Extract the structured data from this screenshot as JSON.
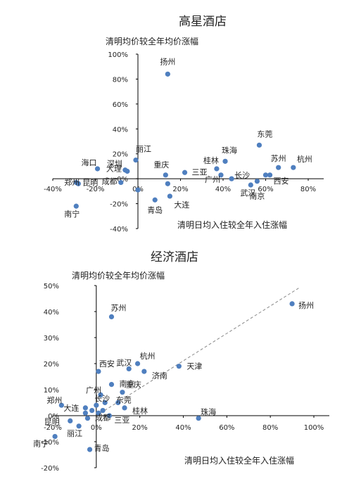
{
  "chart_data": [
    {
      "type": "scatter",
      "title": "高星酒店",
      "ylabel": "清明均价较全年均价涨幅",
      "xlabel": "清明日均入住较全年入住涨幅",
      "xlim": [
        -40,
        80
      ],
      "ylim": [
        -40,
        100
      ],
      "xticks": [
        "-40%",
        "-20%",
        "0%",
        "20%",
        "40%",
        "60%",
        "80%"
      ],
      "yticks": [
        "-40%",
        "-20%",
        "0%",
        "20%",
        "40%",
        "60%",
        "80%",
        "100%"
      ],
      "points": [
        {
          "label": "扬州",
          "x": 14,
          "y": 84
        },
        {
          "label": "东莞",
          "x": 57,
          "y": 27
        },
        {
          "label": "珠海",
          "x": 41,
          "y": 14
        },
        {
          "label": "桂林",
          "x": 37,
          "y": 8
        },
        {
          "label": "苏州",
          "x": 66,
          "y": 9
        },
        {
          "label": "杭州",
          "x": 73,
          "y": 9
        },
        {
          "label": "丽江",
          "x": -1,
          "y": 15
        },
        {
          "label": "深圳",
          "x": -5,
          "y": 6
        },
        {
          "label": "大理",
          "x": -6,
          "y": 7
        },
        {
          "label": "成都",
          "x": -8,
          "y": -3
        },
        {
          "label": "海口",
          "x": -19,
          "y": 8
        },
        {
          "label": "昆明",
          "x": -29,
          "y": -3
        },
        {
          "label": "郑州",
          "x": -28,
          "y": -4
        },
        {
          "label": "南宁",
          "x": -29,
          "y": -22
        },
        {
          "label": "重庆",
          "x": 13,
          "y": 3
        },
        {
          "label": "三亚",
          "x": 22,
          "y": 5
        },
        {
          "label": "广州",
          "x": 39,
          "y": 3
        },
        {
          "label": "长沙",
          "x": 44,
          "y": 0
        },
        {
          "label": "武汉",
          "x": 53,
          "y": -5
        },
        {
          "label": "南京",
          "x": 56,
          "y": -2
        },
        {
          "label": "西安",
          "x": 60,
          "y": 3
        },
        {
          "label": "青岛",
          "x": 8,
          "y": -17
        },
        {
          "label": "大连",
          "x": 15,
          "y": -14
        }
      ],
      "extra_points": [
        {
          "x": 0,
          "y": -9
        },
        {
          "x": 14,
          "y": -4
        },
        {
          "x": 62,
          "y": 3
        }
      ]
    },
    {
      "type": "scatter",
      "title": "经济酒店",
      "ylabel": "清明均价较全年均价涨幅",
      "xlabel": "清明日均入住较全年入住涨幅",
      "xlim": [
        -20,
        100
      ],
      "ylim": [
        -20,
        50
      ],
      "xticks": [
        "-20%",
        "0%",
        "20%",
        "40%",
        "60%",
        "80%",
        "100%"
      ],
      "yticks": [
        "-20%",
        "-10%",
        "0%",
        "10%",
        "20%",
        "30%",
        "40%",
        "50%"
      ],
      "trendline": [
        [
          0,
          0
        ],
        [
          93,
          49
        ]
      ],
      "points": [
        {
          "label": "扬州",
          "x": 90,
          "y": 43
        },
        {
          "label": "苏州",
          "x": 7,
          "y": 38
        },
        {
          "label": "天津",
          "x": 38,
          "y": 19
        },
        {
          "label": "杭州",
          "x": 19,
          "y": 20
        },
        {
          "label": "武汉",
          "x": 15,
          "y": 18
        },
        {
          "label": "济南",
          "x": 22,
          "y": 17
        },
        {
          "label": "西安",
          "x": 1,
          "y": 17
        },
        {
          "label": "南京",
          "x": 7,
          "y": 12
        },
        {
          "label": "广州",
          "x": 2,
          "y": 8
        },
        {
          "label": "重庆",
          "x": 12,
          "y": 9
        },
        {
          "label": "长沙",
          "x": 4,
          "y": 5
        },
        {
          "label": "东莞",
          "x": 10,
          "y": 5
        },
        {
          "label": "桂林",
          "x": 13,
          "y": 3
        },
        {
          "label": "珠海",
          "x": 47,
          "y": -1
        },
        {
          "label": "三亚",
          "x": 6,
          "y": 0
        },
        {
          "label": "成都",
          "x": 3,
          "y": 2
        },
        {
          "label": "郑州",
          "x": -16,
          "y": 4
        },
        {
          "label": "大连",
          "x": -5,
          "y": 3
        },
        {
          "label": "昆明",
          "x": -12,
          "y": -2
        },
        {
          "label": "丽江",
          "x": -8,
          "y": -4
        },
        {
          "label": "南宁",
          "x": -19,
          "y": -8
        },
        {
          "label": "青岛",
          "x": -3,
          "y": -13
        }
      ],
      "extra_points": [
        {
          "x": -5,
          "y": 1
        },
        {
          "x": -4,
          "y": -1
        },
        {
          "x": -2,
          "y": 2
        },
        {
          "x": 0,
          "y": 4
        },
        {
          "x": 1,
          "y": 1
        }
      ]
    }
  ]
}
